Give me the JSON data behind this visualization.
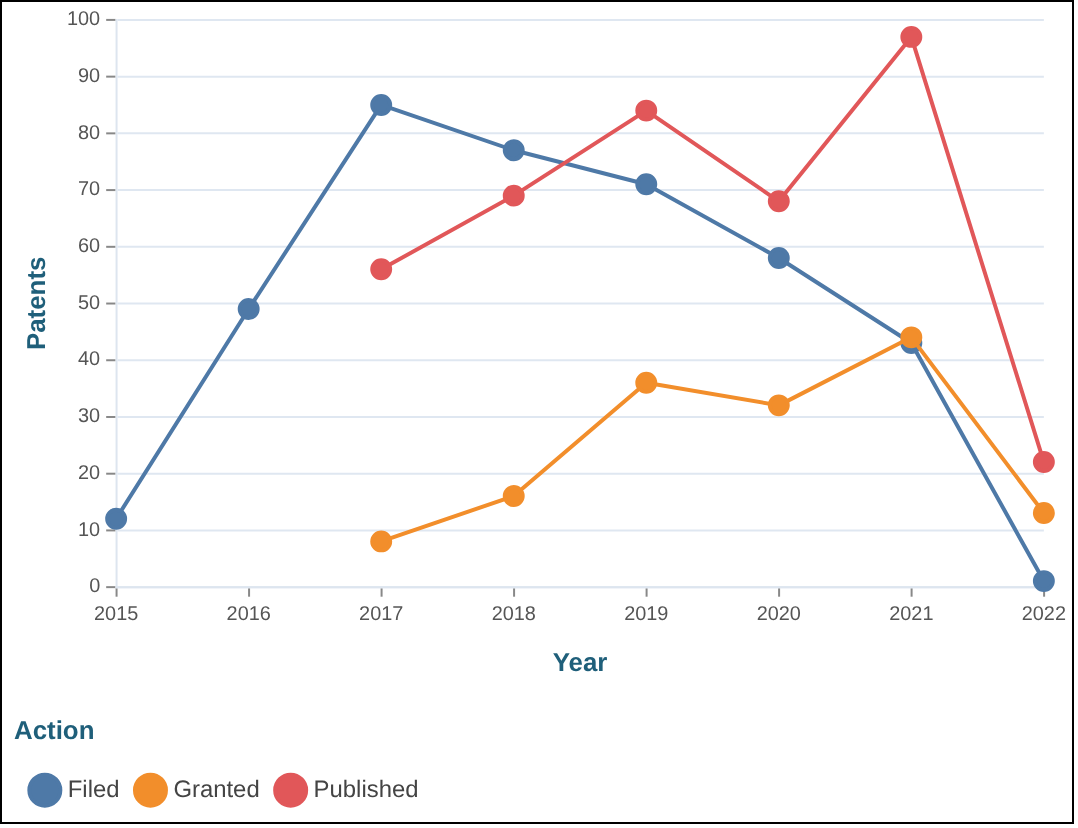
{
  "chart_data": {
    "type": "line",
    "xlabel": "Year",
    "ylabel": "Patents",
    "legend_title": "Action",
    "legend": "bottom",
    "grid": "y",
    "marker": "circle",
    "line_style": "solid",
    "xlim": [
      2015,
      2022
    ],
    "xticks": [
      2015,
      2016,
      2017,
      2018,
      2019,
      2020,
      2021,
      2022
    ],
    "ylim": [
      0,
      100
    ],
    "yticks": [
      0,
      10,
      20,
      30,
      40,
      50,
      60,
      70,
      80,
      90,
      100
    ],
    "series": [
      {
        "name": "Filed",
        "color": "#4e79a7",
        "x": [
          2015,
          2016,
          2017,
          2018,
          2019,
          2020,
          2021,
          2022
        ],
        "values": [
          12,
          49,
          85,
          77,
          71,
          58,
          43,
          1
        ]
      },
      {
        "name": "Granted",
        "color": "#f28e2b",
        "x": [
          2017,
          2018,
          2019,
          2020,
          2021,
          2022
        ],
        "values": [
          8,
          16,
          36,
          32,
          44,
          13
        ]
      },
      {
        "name": "Published",
        "color": "#e15759",
        "x": [
          2017,
          2018,
          2019,
          2020,
          2021,
          2022
        ],
        "values": [
          56,
          69,
          84,
          68,
          97,
          22
        ]
      }
    ]
  }
}
